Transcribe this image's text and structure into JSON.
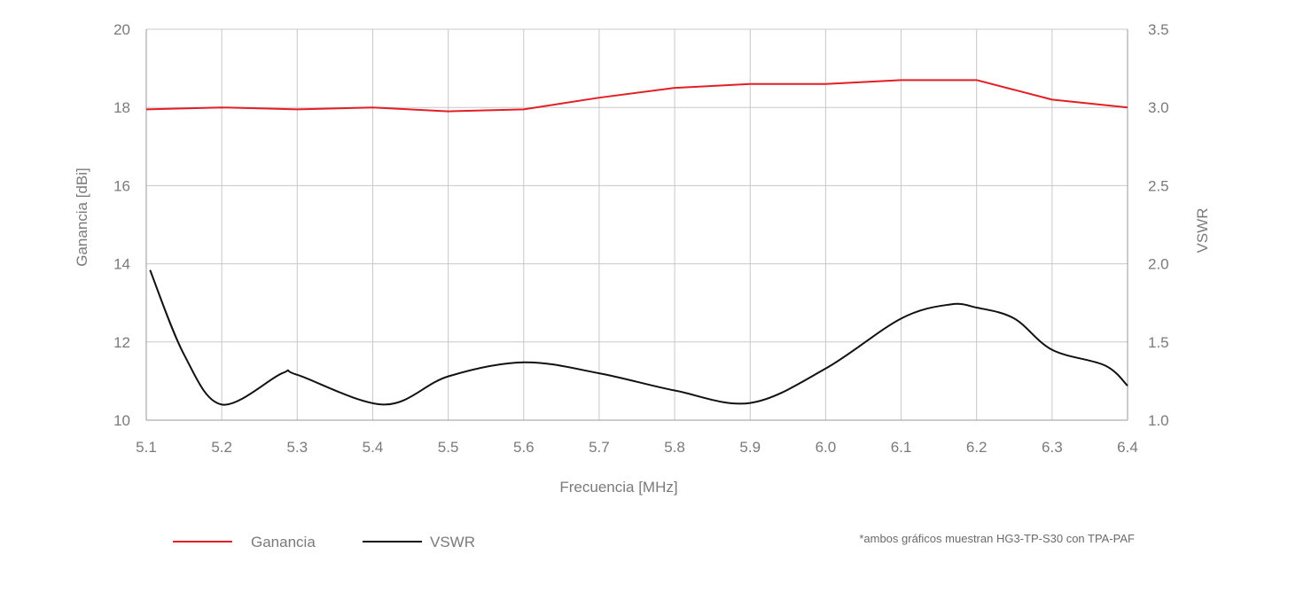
{
  "chart_data": {
    "type": "line",
    "xlabel": "Frecuencia [MHz]",
    "ylabel": "Ganancia [dBi]",
    "y2label": "VSWR",
    "xlim": [
      5.1,
      6.4
    ],
    "ylim": [
      10,
      20
    ],
    "y2lim": [
      1.0,
      3.5
    ],
    "x_ticks": [
      "5.1",
      "5.2",
      "5.3",
      "5.4",
      "5.5",
      "5.6",
      "5.7",
      "5.8",
      "5.9",
      "6.0",
      "6.1",
      "6.2",
      "6.3",
      "6.4"
    ],
    "y_ticks": [
      "10",
      "12",
      "14",
      "16",
      "18",
      "20"
    ],
    "y2_ticks": [
      "1.0",
      "1.5",
      "2.0",
      "2.5",
      "3.0",
      "3.5"
    ],
    "grid": true,
    "legend_position": "bottom-left",
    "series": [
      {
        "name": "Ganancia",
        "axis": "left",
        "color": "#e31e24",
        "x": [
          5.1,
          5.2,
          5.3,
          5.4,
          5.5,
          5.6,
          5.7,
          5.8,
          5.9,
          6.0,
          6.1,
          6.2,
          6.3,
          6.4
        ],
        "values": [
          17.95,
          18.0,
          17.95,
          18.0,
          17.9,
          17.95,
          18.25,
          18.5,
          18.6,
          18.6,
          18.7,
          18.7,
          18.2,
          18.0
        ]
      },
      {
        "name": "VSWR",
        "axis": "right",
        "color": "#111111",
        "x": [
          5.105,
          5.15,
          5.2,
          5.28,
          5.3,
          5.415,
          5.5,
          5.6,
          5.7,
          5.8,
          5.9,
          6.0,
          6.1,
          6.165,
          6.2,
          6.25,
          6.3,
          6.37,
          6.4
        ],
        "values": [
          1.96,
          1.42,
          1.1,
          1.3,
          1.29,
          1.1,
          1.28,
          1.37,
          1.3,
          1.19,
          1.11,
          1.33,
          1.65,
          1.74,
          1.72,
          1.65,
          1.45,
          1.35,
          1.22
        ]
      }
    ]
  },
  "legend": {
    "items": [
      {
        "label": "Ganancia",
        "color": "#e31e24"
      },
      {
        "label": "VSWR",
        "color": "#111111"
      }
    ]
  },
  "note": "*ambos gráficos muestran HG3-TP-S30 con TPA-PAF"
}
